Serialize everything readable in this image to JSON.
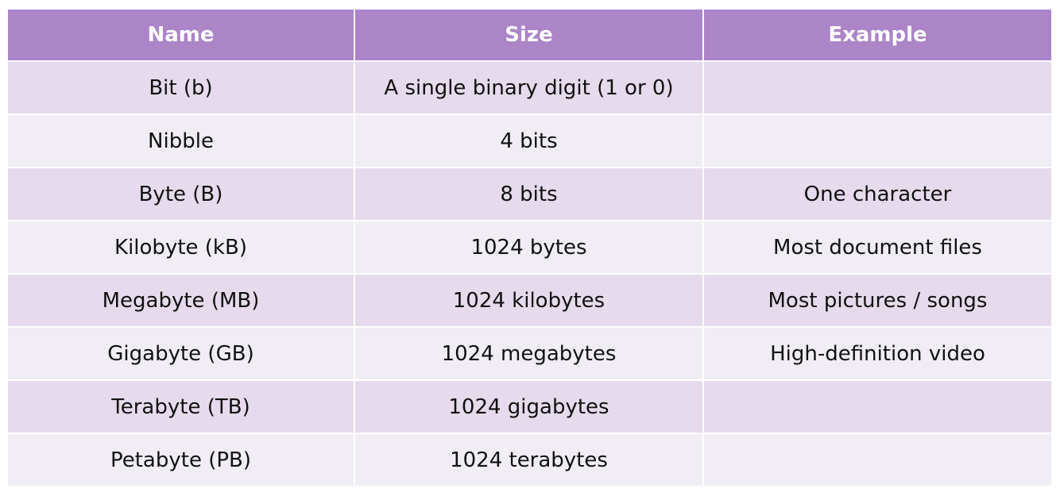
{
  "table": {
    "headers": {
      "name": "Name",
      "size": "Size",
      "example": "Example"
    },
    "rows": [
      {
        "name": "Bit (b)",
        "size": "A single binary digit (1 or 0)",
        "example": ""
      },
      {
        "name": "Nibble",
        "size": "4 bits",
        "example": ""
      },
      {
        "name": "Byte (B)",
        "size": "8 bits",
        "example": "One character"
      },
      {
        "name": "Kilobyte (kB)",
        "size": "1024 bytes",
        "example": "Most document files"
      },
      {
        "name": "Megabyte (MB)",
        "size": "1024 kilobytes",
        "example": "Most pictures / songs"
      },
      {
        "name": "Gigabyte (GB)",
        "size": "1024 megabytes",
        "example": "High-definition video"
      },
      {
        "name": "Terabyte (TB)",
        "size": "1024 gigabytes",
        "example": ""
      },
      {
        "name": "Petabyte (PB)",
        "size": "1024 terabytes",
        "example": ""
      }
    ]
  },
  "colors": {
    "header_bg": "#ac84c8",
    "row_odd_bg": "#e5dbec",
    "row_even_bg": "#f1edf4",
    "header_text": "#ffffff",
    "body_text": "#111111"
  }
}
